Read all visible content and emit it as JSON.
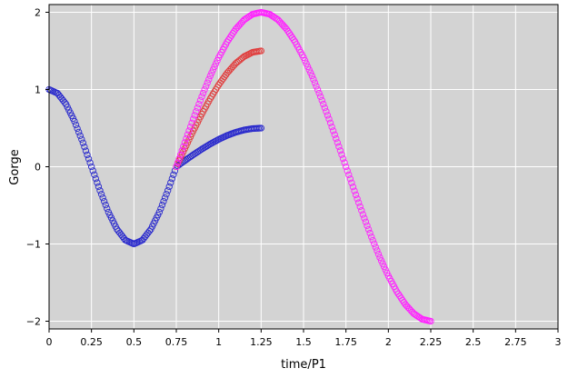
{
  "chart_data": {
    "type": "scatter",
    "xlabel": "time/P1",
    "ylabel": "Gorge",
    "xlim": [
      0,
      3
    ],
    "ylim": [
      -2.1,
      2.1
    ],
    "xticks": [
      0,
      0.25,
      0.5,
      0.75,
      1,
      1.25,
      1.5,
      1.75,
      2,
      2.25,
      2.5,
      2.75,
      3
    ],
    "xtick_labels": [
      "0",
      "0.25",
      "0.5",
      "0.75",
      "1",
      "1.25",
      "1.5",
      "1.75",
      "2",
      "2.25",
      "2.5",
      "2.75",
      "3"
    ],
    "yticks": [
      -2,
      -1,
      0,
      1,
      2
    ],
    "ytick_labels": [
      "−2",
      "−1",
      "0",
      "1",
      "2"
    ],
    "grid": true,
    "plot_background": "#d3d3d3",
    "marker": "open-circle",
    "series": [
      {
        "color": "#2828cc",
        "points": [
          [
            0.0,
            1.0
          ],
          [
            0.05,
            0.951
          ],
          [
            0.1,
            0.809
          ],
          [
            0.15,
            0.588
          ],
          [
            0.2,
            0.309
          ],
          [
            0.25,
            0.0
          ],
          [
            0.3,
            -0.309
          ],
          [
            0.35,
            -0.588
          ],
          [
            0.4,
            -0.809
          ],
          [
            0.45,
            -0.951
          ],
          [
            0.5,
            -1.0
          ],
          [
            0.55,
            -0.951
          ],
          [
            0.6,
            -0.809
          ],
          [
            0.65,
            -0.588
          ],
          [
            0.7,
            -0.309
          ],
          [
            0.75,
            0.0
          ],
          [
            0.8,
            0.078
          ],
          [
            0.85,
            0.155
          ],
          [
            0.9,
            0.227
          ],
          [
            0.95,
            0.294
          ],
          [
            1.0,
            0.354
          ],
          [
            1.05,
            0.405
          ],
          [
            1.1,
            0.446
          ],
          [
            1.15,
            0.476
          ],
          [
            1.2,
            0.494
          ],
          [
            1.25,
            0.5
          ]
        ]
      },
      {
        "color": "#e03c3c",
        "points": [
          [
            0.75,
            0.0
          ],
          [
            0.8,
            0.235
          ],
          [
            0.85,
            0.464
          ],
          [
            0.9,
            0.681
          ],
          [
            0.95,
            0.882
          ],
          [
            1.0,
            1.061
          ],
          [
            1.05,
            1.214
          ],
          [
            1.1,
            1.338
          ],
          [
            1.15,
            1.427
          ],
          [
            1.2,
            1.482
          ],
          [
            1.25,
            1.5
          ]
        ]
      },
      {
        "color": "#ff20ff",
        "points": [
          [
            0.75,
            0.0
          ],
          [
            0.8,
            0.313
          ],
          [
            0.85,
            0.618
          ],
          [
            0.9,
            0.908
          ],
          [
            0.95,
            1.176
          ],
          [
            1.0,
            1.414
          ],
          [
            1.05,
            1.618
          ],
          [
            1.1,
            1.782
          ],
          [
            1.15,
            1.902
          ],
          [
            1.2,
            1.975
          ],
          [
            1.25,
            2.0
          ],
          [
            1.3,
            1.975
          ],
          [
            1.35,
            1.902
          ],
          [
            1.4,
            1.782
          ],
          [
            1.45,
            1.618
          ],
          [
            1.5,
            1.414
          ],
          [
            1.55,
            1.176
          ],
          [
            1.6,
            0.908
          ],
          [
            1.65,
            0.618
          ],
          [
            1.7,
            0.313
          ],
          [
            1.75,
            0.0
          ],
          [
            1.8,
            -0.313
          ],
          [
            1.85,
            -0.618
          ],
          [
            1.9,
            -0.908
          ],
          [
            1.95,
            -1.176
          ],
          [
            2.0,
            -1.414
          ],
          [
            2.05,
            -1.618
          ],
          [
            2.1,
            -1.782
          ],
          [
            2.15,
            -1.902
          ],
          [
            2.2,
            -1.975
          ],
          [
            2.25,
            -2.0
          ]
        ]
      }
    ]
  }
}
